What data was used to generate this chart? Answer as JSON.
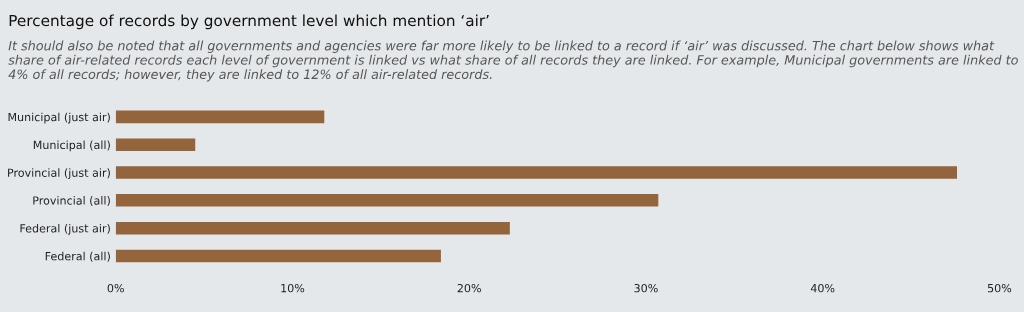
{
  "chart_data": {
    "type": "bar",
    "orientation": "horizontal",
    "title": "Percentage of records by government level which mention ‘air’",
    "subtitle": "It should also be noted that all governments and agencies were far more likely to be linked to a record if ‘air’ was discussed. The chart below shows what share of air-related records each level of government is linked vs what share of all records they are linked. For example, Municipal governments are linked to 4% of all records; however, they are linked to 12% of all air-related records.",
    "categories": [
      "Municipal (just air)",
      "Municipal (all)",
      "Provincial (just air)",
      "Provincial (all)",
      "Federal (just air)",
      "Federal (all)"
    ],
    "values": [
      11.8,
      4.5,
      47.6,
      30.7,
      22.3,
      18.4
    ],
    "color": "#94643c",
    "xlim": [
      0,
      50
    ],
    "xticks": [
      {
        "value": 0,
        "label": "0%"
      },
      {
        "value": 10,
        "label": "10%"
      },
      {
        "value": 20,
        "label": "20%"
      },
      {
        "value": 30,
        "label": "30%"
      },
      {
        "value": 40,
        "label": "40%"
      },
      {
        "value": 50,
        "label": "50%"
      }
    ],
    "grid": false,
    "legend": false
  }
}
